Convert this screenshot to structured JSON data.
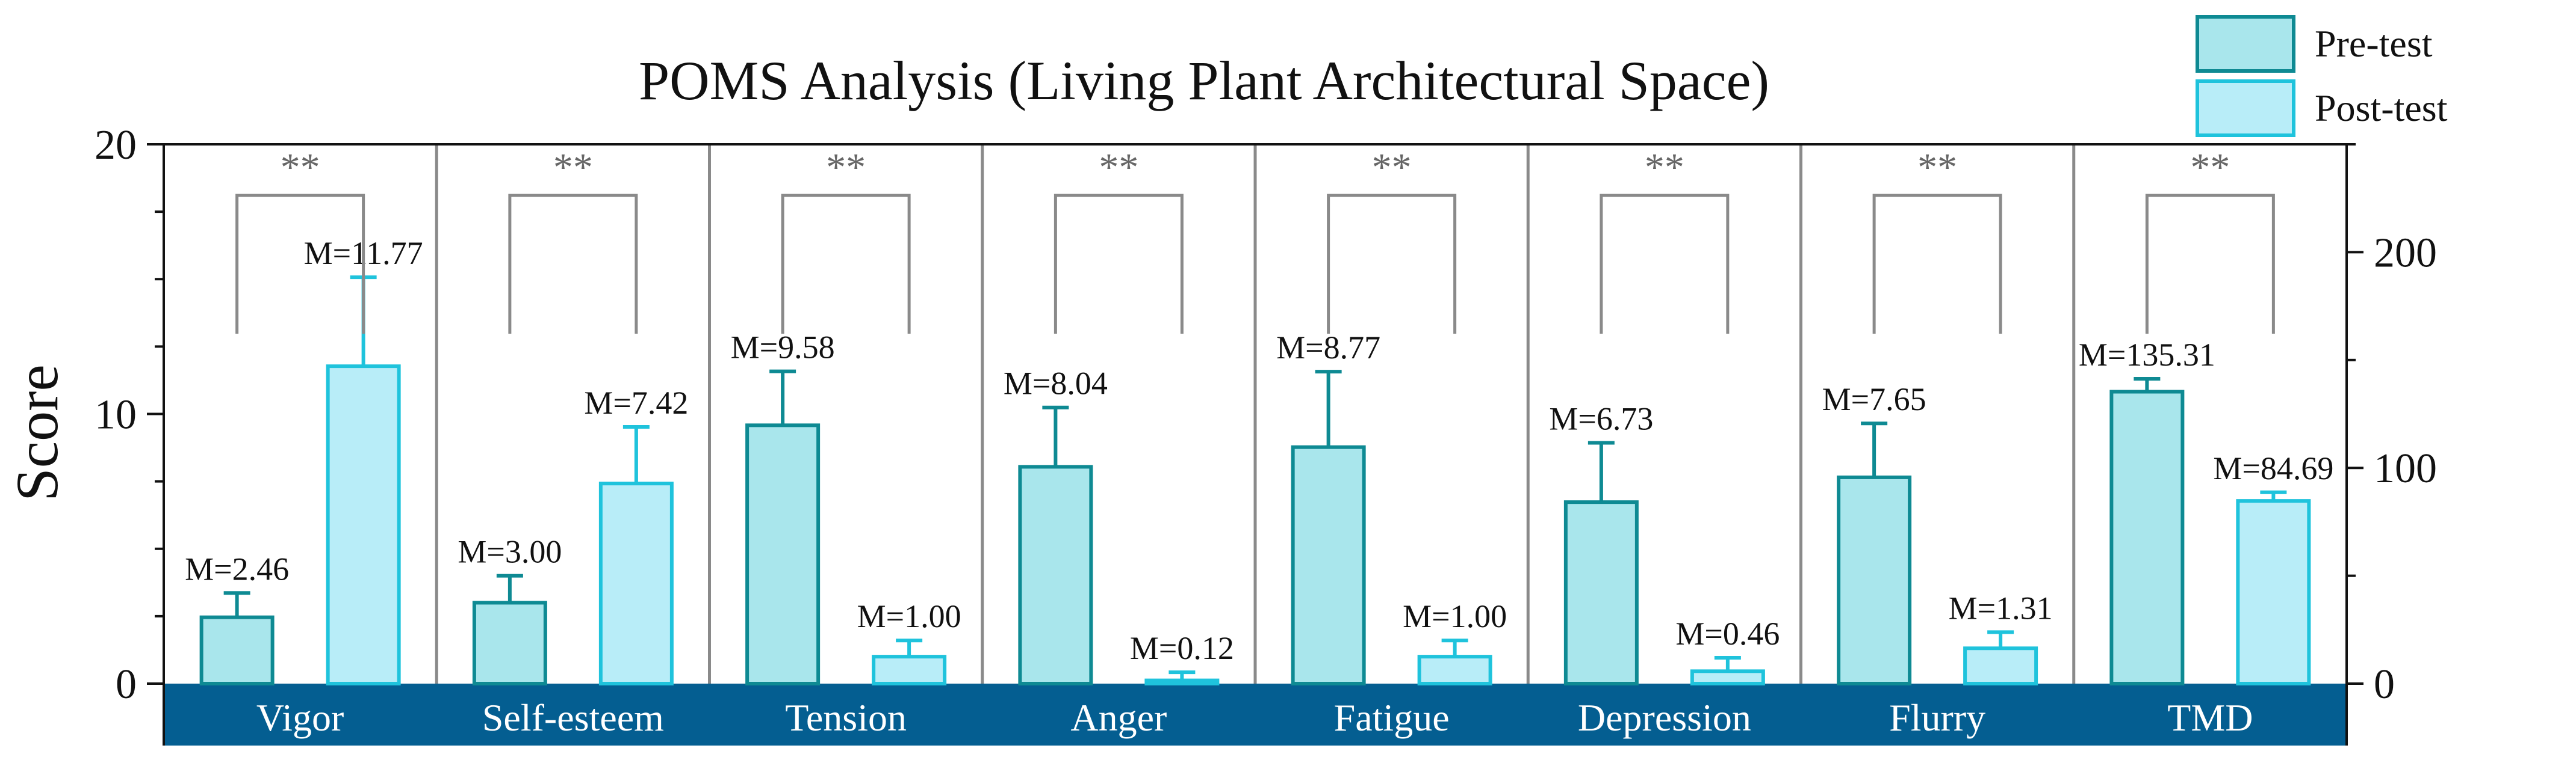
{
  "chart_data": {
    "type": "bar",
    "title": "POMS Analysis (Living Plant Architectural Space)",
    "ylabel": "Score",
    "xlabel": "",
    "ylim": [
      0,
      20
    ],
    "y_ticks": [
      "0",
      "10",
      "20"
    ],
    "ylim_right": [
      0,
      250
    ],
    "y_ticks_right": [
      "0",
      "100",
      "200"
    ],
    "categories": [
      "Vigor",
      "Self-esteem",
      "Tension",
      "Anger",
      "Fatigue",
      "Depression",
      "Flurry",
      "TMD"
    ],
    "secondary_axis_categories": [
      "TMD"
    ],
    "series": [
      {
        "name": "Pre-test",
        "values": [
          2.46,
          3.0,
          9.58,
          8.04,
          8.77,
          6.73,
          7.65,
          135.31
        ],
        "error": [
          0.9,
          1.0,
          2.0,
          2.2,
          2.8,
          2.2,
          2.0,
          6.0
        ],
        "labels": [
          "M=2.46",
          "M=3.00",
          "M=9.58",
          "M=8.04",
          "M=8.77",
          "M=6.73",
          "M=7.65",
          "M=135.31"
        ],
        "color": "#a9e6ec",
        "edge": "#0e8a93"
      },
      {
        "name": "Post-test",
        "values": [
          11.77,
          7.42,
          1.0,
          0.12,
          1.0,
          0.46,
          1.31,
          84.69
        ],
        "error": [
          3.3,
          2.1,
          0.6,
          0.3,
          0.6,
          0.5,
          0.6,
          4.0
        ],
        "labels": [
          "M=11.77",
          "M=7.42",
          "M=1.00",
          "M=0.12",
          "M=1.00",
          "M=0.46",
          "M=1.31",
          "M=84.69"
        ],
        "color": "#b8edf8",
        "edge": "#1fc3dc"
      }
    ],
    "significance": [
      "**",
      "**",
      "**",
      "**",
      "**",
      "**",
      "**",
      "**"
    ],
    "legend": [
      "Pre-test",
      "Post-test"
    ],
    "legend_position": "top-right",
    "category_band_color": "#045e91",
    "category_text_color": "#ffffff"
  }
}
